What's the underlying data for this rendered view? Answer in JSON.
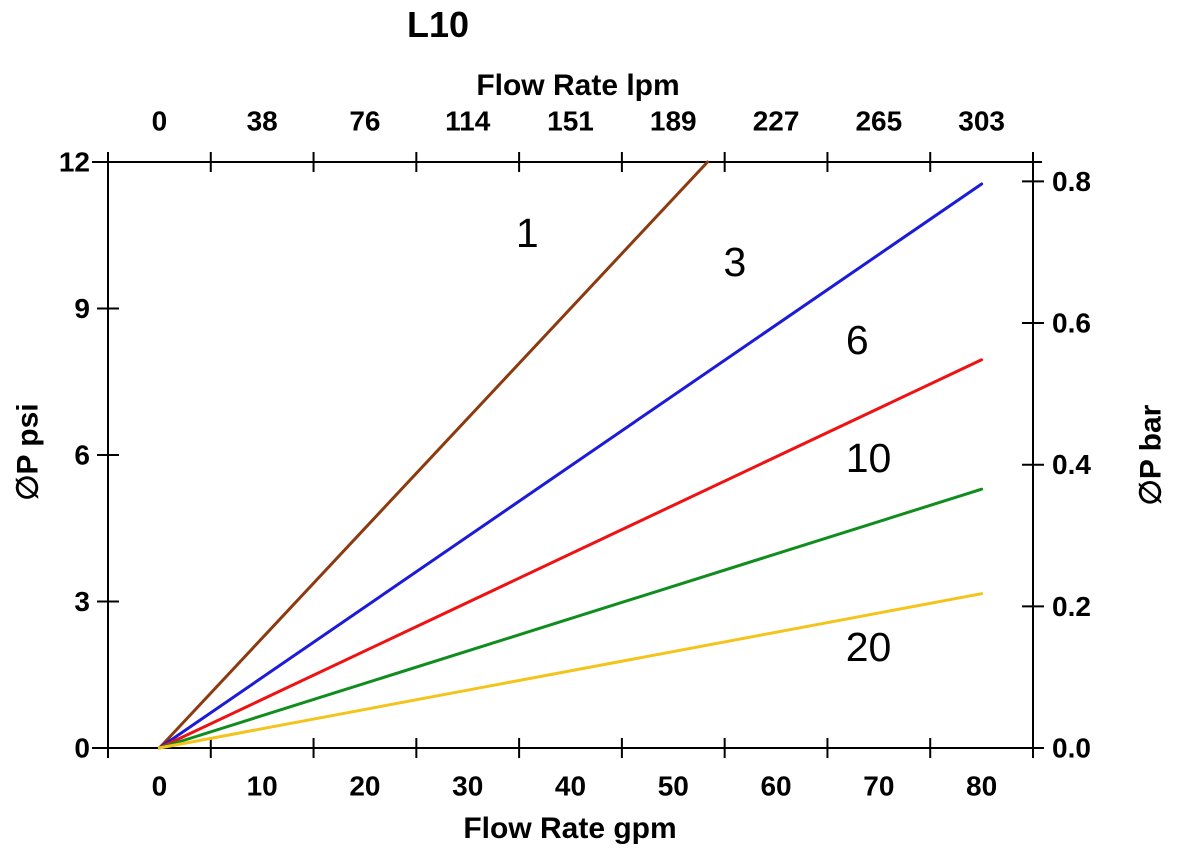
{
  "background": "#FFFFFF",
  "chart_data": {
    "type": "line",
    "title": "L10",
    "x_axis_bottom": {
      "label": "Flow Rate gpm",
      "units": "gpm",
      "tick_labels": [
        "0",
        "10",
        "20",
        "30",
        "40",
        "50",
        "60",
        "70",
        "80"
      ]
    },
    "x_axis_top": {
      "label": "Flow Rate lpm",
      "units": "lpm",
      "tick_labels": [
        "0",
        "38",
        "76",
        "114",
        "151",
        "189",
        "227",
        "265",
        "303"
      ]
    },
    "y_axis_left": {
      "label": "∅P psi",
      "units": "psi",
      "tick_labels": [
        "0",
        "3",
        "6",
        "9",
        "12"
      ],
      "lim": [
        0,
        12
      ]
    },
    "y_axis_right": {
      "label": "∅P bar",
      "units": "bar",
      "tick_labels": [
        "0.0",
        "0.2",
        "0.4",
        "0.6",
        "0.8"
      ],
      "lim": [
        0,
        0.8
      ],
      "psi_per_bar": 14.5038
    },
    "x_labels_between_ticks": true,
    "xlim_gpm": [
      0,
      80
    ],
    "grid": false,
    "legend_position": "inline-labels",
    "axis_color": "#000000",
    "text_color": "#000000",
    "series": [
      {
        "name": "1",
        "color": "#8C3A10",
        "points_gpm_psi": [
          [
            0,
            0
          ],
          [
            80,
            18.0
          ]
        ],
        "clipped_at_psi_max": true,
        "label_pos_gpm_psi": [
          35.8,
          10.55
        ]
      },
      {
        "name": "3",
        "color": "#1B1BD8",
        "points_gpm_psi": [
          [
            0,
            0
          ],
          [
            80,
            11.55
          ]
        ],
        "clipped_at_psi_max": false,
        "label_pos_gpm_psi": [
          56.0,
          9.95
        ]
      },
      {
        "name": "6",
        "color": "#EE1212",
        "points_gpm_psi": [
          [
            0,
            0
          ],
          [
            80,
            7.95
          ]
        ],
        "clipped_at_psi_max": false,
        "label_pos_gpm_psi": [
          67.9,
          8.36
        ]
      },
      {
        "name": "10",
        "color": "#118C1E",
        "points_gpm_psi": [
          [
            0,
            0
          ],
          [
            80,
            5.3
          ]
        ],
        "clipped_at_psi_max": false,
        "label_pos_gpm_psi": [
          69.0,
          5.94
        ]
      },
      {
        "name": "20",
        "color": "#F5C41C",
        "points_gpm_psi": [
          [
            0,
            0
          ],
          [
            80,
            3.16
          ]
        ],
        "clipped_at_psi_max": false,
        "label_pos_gpm_psi": [
          69.0,
          2.07
        ]
      }
    ]
  }
}
